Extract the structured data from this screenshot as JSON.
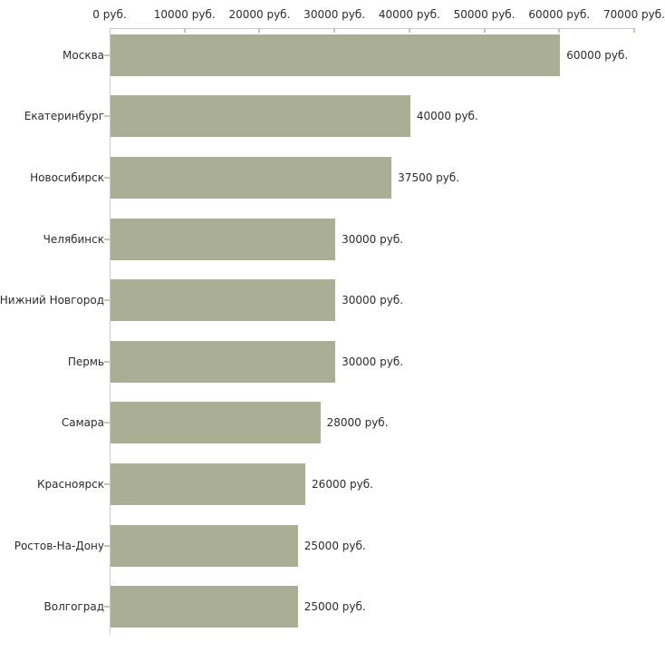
{
  "chart_data": {
    "type": "bar",
    "orientation": "horizontal",
    "title": "",
    "xlabel": "",
    "ylabel": "",
    "unit": "руб.",
    "categories": [
      "Москва",
      "Екатеринбург",
      "Новосибирск",
      "Челябинск",
      "Нижний Новгород",
      "Пермь",
      "Самара",
      "Красноярск",
      "Ростов-На-Дону",
      "Волгоград"
    ],
    "values": [
      60000,
      40000,
      37500,
      30000,
      30000,
      30000,
      28000,
      26000,
      25000,
      25000
    ],
    "value_labels": [
      "60000 руб.",
      "40000 руб.",
      "37500 руб.",
      "30000 руб.",
      "30000 руб.",
      "30000 руб.",
      "28000 руб.",
      "26000 руб.",
      "25000 руб.",
      "25000 руб."
    ],
    "x_axis": {
      "position": "top",
      "min": 0,
      "max": 70000,
      "tick_values": [
        0,
        10000,
        20000,
        30000,
        40000,
        50000,
        60000,
        70000
      ],
      "tick_labels": [
        "0 руб.",
        "10000 руб.",
        "20000 руб.",
        "30000 руб.",
        "40000 руб.",
        "50000 руб.",
        "60000 руб.",
        "70000 руб."
      ]
    },
    "grid": "off",
    "legend": "none",
    "colors": {
      "bar": "#a9ae95",
      "axis_line": "#cbcbcb",
      "tick_mark": "#c8c8a6",
      "text": "#2b2b2b",
      "background": "#ffffff"
    }
  }
}
